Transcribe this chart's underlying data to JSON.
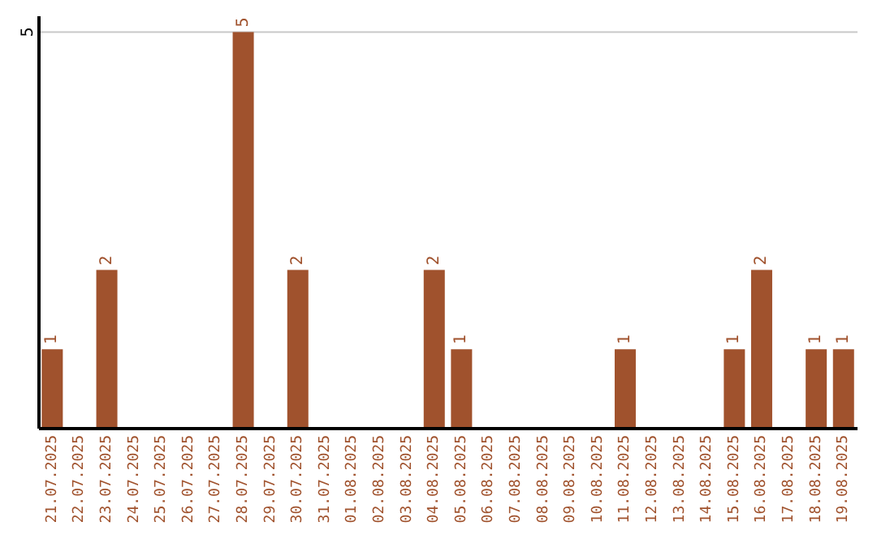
{
  "chart_data": {
    "type": "bar",
    "categories": [
      "21.07.2025",
      "22.07.2025",
      "23.07.2025",
      "24.07.2025",
      "25.07.2025",
      "26.07.2025",
      "27.07.2025",
      "28.07.2025",
      "29.07.2025",
      "30.07.2025",
      "31.07.2025",
      "01.08.2025",
      "02.08.2025",
      "03.08.2025",
      "04.08.2025",
      "05.08.2025",
      "06.08.2025",
      "07.08.2025",
      "08.08.2025",
      "09.08.2025",
      "10.08.2025",
      "11.08.2025",
      "12.08.2025",
      "13.08.2025",
      "14.08.2025",
      "15.08.2025",
      "16.08.2025",
      "17.08.2025",
      "18.08.2025",
      "19.08.2025"
    ],
    "values": [
      1,
      0,
      2,
      0,
      0,
      0,
      0,
      5,
      0,
      2,
      0,
      0,
      0,
      0,
      2,
      1,
      0,
      0,
      0,
      0,
      0,
      1,
      0,
      0,
      0,
      1,
      2,
      0,
      1,
      1
    ],
    "value_labels": [
      "1",
      null,
      "2",
      null,
      null,
      null,
      null,
      "5",
      null,
      "2",
      null,
      null,
      null,
      null,
      "2",
      "1",
      null,
      null,
      null,
      null,
      null,
      "1",
      null,
      null,
      null,
      "1",
      "2",
      null,
      "1",
      "1"
    ],
    "color": "#a0522d",
    "ylim": [
      0,
      5.2
    ],
    "yticks": [
      5
    ],
    "grid": "y"
  }
}
